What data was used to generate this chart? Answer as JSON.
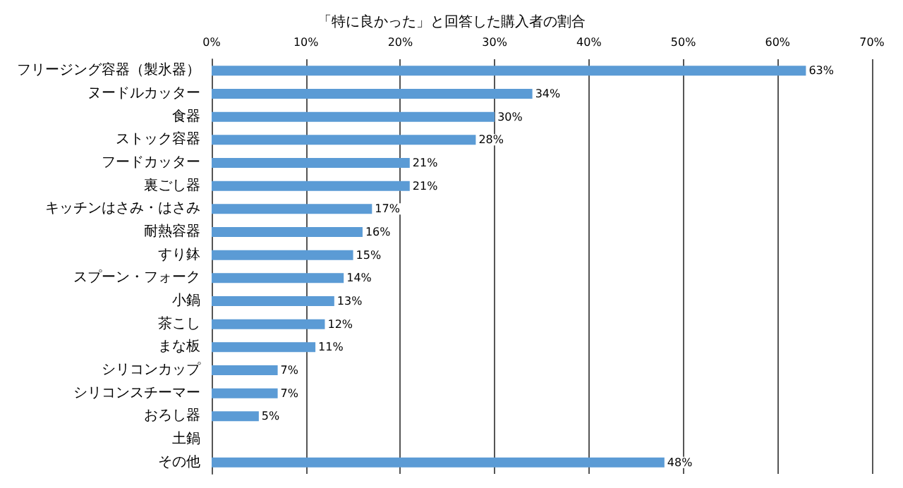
{
  "chart_data": {
    "type": "bar",
    "orientation": "horizontal",
    "title": "「特に良かった」と回答した購入者の割合",
    "categories": [
      "フリージング容器（製氷器）",
      "ヌードルカッター",
      "食器",
      "ストック容器",
      "フードカッター",
      "裏ごし器",
      "キッチンはさみ・はさみ",
      "耐熱容器",
      "すり鉢",
      "スプーン・フォーク",
      "小鍋",
      "茶こし",
      "まな板",
      "シリコンカップ",
      "シリコンスチーマー",
      "おろし器",
      "土鍋",
      "その他"
    ],
    "values": [
      63,
      34,
      30,
      28,
      21,
      21,
      17,
      16,
      15,
      14,
      13,
      12,
      11,
      7,
      7,
      5,
      0,
      48
    ],
    "value_labels": [
      "63%",
      "34%",
      "30%",
      "28%",
      "21%",
      "21%",
      "17%",
      "16%",
      "15%",
      "14%",
      "13%",
      "12%",
      "11%",
      "7%",
      "7%",
      "5%",
      null,
      "48%"
    ],
    "color": "#5b9bd5",
    "xlim": [
      0,
      70
    ],
    "xticks": [
      {
        "value": 0,
        "label": "0%"
      },
      {
        "value": 10,
        "label": "10%"
      },
      {
        "value": 20,
        "label": "20%"
      },
      {
        "value": 30,
        "label": "30%"
      },
      {
        "value": 40,
        "label": "40%"
      },
      {
        "value": 50,
        "label": "50%"
      },
      {
        "value": 60,
        "label": "60%"
      },
      {
        "value": 70,
        "label": "70%"
      }
    ],
    "grid": "x"
  }
}
